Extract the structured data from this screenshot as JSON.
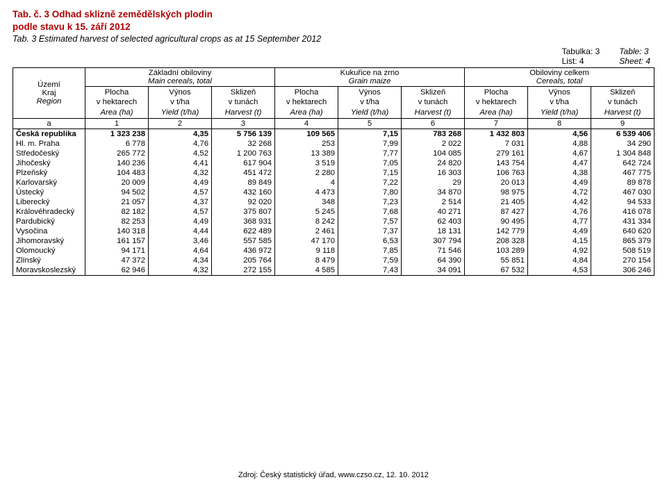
{
  "title": {
    "cz_line1": "Tab. č. 3  Odhad sklizně zemědělských plodin",
    "cz_line2": "podle stavu k 15. září 2012",
    "en": "Tab. 3 Estimated harvest of selected agricultural crops as at 15 September 2012"
  },
  "meta": {
    "left": {
      "cz": "Tabulka: 3",
      "cz2": "List: 4"
    },
    "right": {
      "en": "Table: 3",
      "en2": "Sheet: 4"
    }
  },
  "headers": {
    "region_cz1": "Území",
    "region_cz2": "Kraj",
    "region_en": "Region",
    "groups": [
      {
        "cz": "Základní obiloviny",
        "en": "Main cereals, total"
      },
      {
        "cz": "Kukuřice na zrno",
        "en": "Grain maize"
      },
      {
        "cz": "Obiloviny celkem",
        "en": "Cereals, total"
      }
    ],
    "sub": [
      {
        "cz1": "Plocha",
        "cz2": "v hektarech",
        "en": "Area (ha)"
      },
      {
        "cz1": "Výnos",
        "cz2": "v t/ha",
        "en": "Yield (t/ha)"
      },
      {
        "cz1": "Sklizeň",
        "cz2": "v tunách",
        "en": "Harvest (t)"
      }
    ],
    "index_row_label": "a",
    "index_row": [
      "1",
      "2",
      "3",
      "4",
      "5",
      "6",
      "7",
      "8",
      "9"
    ]
  },
  "rows": [
    {
      "bold": true,
      "region": "Česká republika",
      "v": [
        "1 323 238",
        "4,35",
        "5 756 139",
        "109 565",
        "7,15",
        "783 268",
        "1 432 803",
        "4,56",
        "6 539 406"
      ]
    },
    {
      "region": "Hl. m. Praha",
      "v": [
        "6 778",
        "4,76",
        "32 268",
        "253",
        "7,99",
        "2 022",
        "7 031",
        "4,88",
        "34 290"
      ]
    },
    {
      "region": "Středočeský",
      "v": [
        "265 772",
        "4,52",
        "1 200 763",
        "13 389",
        "7,77",
        "104 085",
        "279 161",
        "4,67",
        "1 304 848"
      ]
    },
    {
      "region": "Jihočeský",
      "v": [
        "140 236",
        "4,41",
        "617 904",
        "3 519",
        "7,05",
        "24 820",
        "143 754",
        "4,47",
        "642 724"
      ]
    },
    {
      "region": "Plzeňský",
      "v": [
        "104 483",
        "4,32",
        "451 472",
        "2 280",
        "7,15",
        "16 303",
        "106 763",
        "4,38",
        "467 775"
      ]
    },
    {
      "region": "Karlovarský",
      "v": [
        "20 009",
        "4,49",
        "89 849",
        "4",
        "7,22",
        "29",
        "20 013",
        "4,49",
        "89 878"
      ]
    },
    {
      "region": "Ústecký",
      "v": [
        "94 502",
        "4,57",
        "432 160",
        "4 473",
        "7,80",
        "34 870",
        "98 975",
        "4,72",
        "467 030"
      ]
    },
    {
      "region": "Liberecký",
      "v": [
        "21 057",
        "4,37",
        "92 020",
        "348",
        "7,23",
        "2 514",
        "21 405",
        "4,42",
        "94 533"
      ]
    },
    {
      "region": "Královéhradecký",
      "v": [
        "82 182",
        "4,57",
        "375 807",
        "5 245",
        "7,68",
        "40 271",
        "87 427",
        "4,76",
        "416 078"
      ]
    },
    {
      "region": "Pardubický",
      "v": [
        "82 253",
        "4,49",
        "368 931",
        "8 242",
        "7,57",
        "62 403",
        "90 495",
        "4,77",
        "431 334"
      ]
    },
    {
      "region": "Vysočina",
      "v": [
        "140 318",
        "4,44",
        "622 489",
        "2 461",
        "7,37",
        "18 131",
        "142 779",
        "4,49",
        "640 620"
      ]
    },
    {
      "region": "Jihomoravský",
      "v": [
        "161 157",
        "3,46",
        "557 585",
        "47 170",
        "6,53",
        "307 794",
        "208 328",
        "4,15",
        "865 379"
      ]
    },
    {
      "region": "Olomoucký",
      "v": [
        "94 171",
        "4,64",
        "436 972",
        "9 118",
        "7,85",
        "71 546",
        "103 289",
        "4,92",
        "508 519"
      ]
    },
    {
      "region": "Zlínský",
      "v": [
        "47 372",
        "4,34",
        "205 764",
        "8 479",
        "7,59",
        "64 390",
        "55 851",
        "4,84",
        "270 154"
      ]
    },
    {
      "region": "Moravskoslezský",
      "v": [
        "62 946",
        "4,32",
        "272 155",
        "4 585",
        "7,43",
        "34 091",
        "67 532",
        "4,53",
        "306 246"
      ]
    }
  ],
  "footer": "Zdroj: Český statistický úřad, www.czso.cz, 12. 10. 2012"
}
